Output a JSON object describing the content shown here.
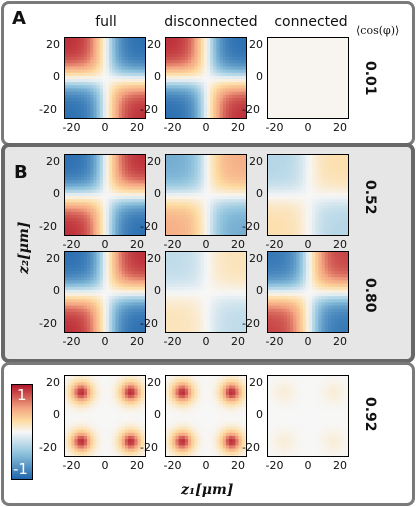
{
  "panels": {
    "a": "A",
    "b": "B"
  },
  "columns": [
    "full",
    "disconnected",
    "connected"
  ],
  "avg_header": "⟨cos(φ)⟩",
  "rows": [
    {
      "value": "0.01",
      "patterns": [
        {
          "kind": "quad",
          "sign": 1,
          "amp": 0.95
        },
        {
          "kind": "quad",
          "sign": 1,
          "amp": 0.95
        },
        {
          "kind": "flat",
          "sign": 1,
          "amp": 0.06
        }
      ]
    },
    {
      "value": "0.52",
      "patterns": [
        {
          "kind": "quad",
          "sign": -1,
          "amp": 0.95
        },
        {
          "kind": "quad",
          "sign": -1,
          "amp": 0.6
        },
        {
          "kind": "quad",
          "sign": -1,
          "amp": 0.3
        }
      ]
    },
    {
      "value": "0.80",
      "patterns": [
        {
          "kind": "quad",
          "sign": -1,
          "amp": 0.95
        },
        {
          "kind": "quad",
          "sign": -1,
          "amp": 0.25
        },
        {
          "kind": "quad",
          "sign": -1,
          "amp": 0.9
        }
      ]
    },
    {
      "value": "0.92",
      "patterns": [
        {
          "kind": "four",
          "sign": 1,
          "amp": 0.95
        },
        {
          "kind": "four",
          "sign": 1,
          "amp": 0.95
        },
        {
          "kind": "four",
          "sign": 1,
          "amp": 0.12
        }
      ]
    }
  ],
  "axis": {
    "x_ticks": [
      "-20",
      "0",
      "20"
    ],
    "y_ticks": [
      "20",
      "0",
      "-20"
    ],
    "xlabel": "z₁[μm]",
    "ylabel": "z₂[μm]"
  },
  "colorbar": {
    "max": "1",
    "min": "-1"
  },
  "colors": {
    "red": "#b2182b",
    "white": "#f7f7f7",
    "blue": "#2166ac",
    "orange": "#f4a582"
  }
}
